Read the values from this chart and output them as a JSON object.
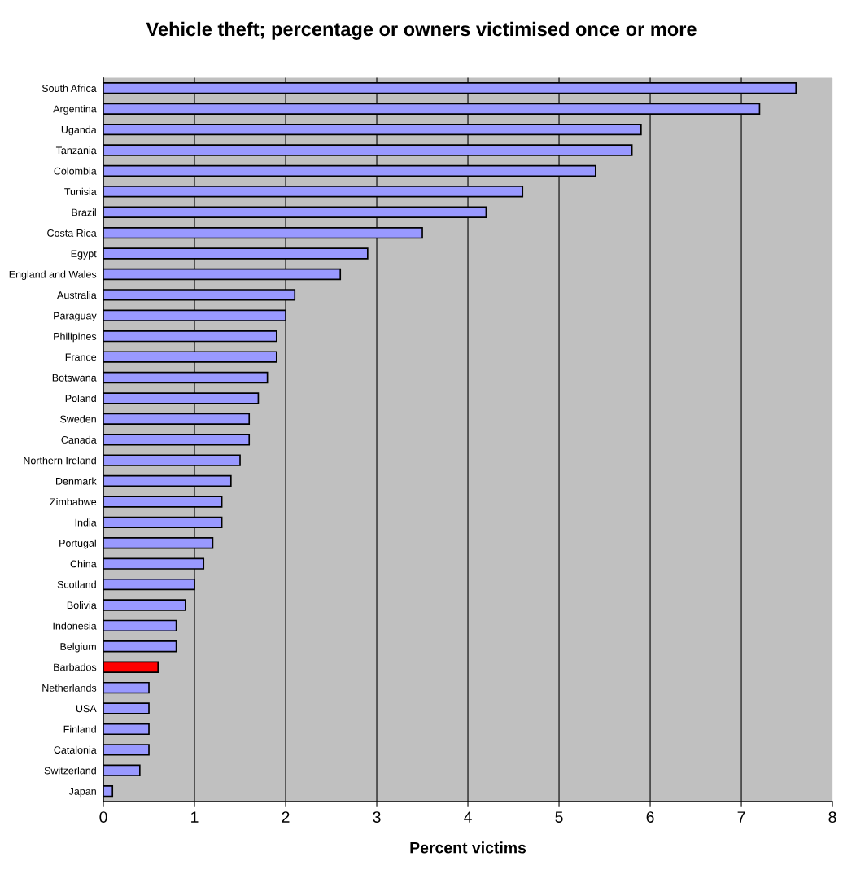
{
  "chart_data": {
    "type": "bar",
    "orientation": "horizontal",
    "title": "Vehicle theft; percentage or owners victimised once or more",
    "xlabel": "Percent victims",
    "categories": [
      "South Africa",
      "Argentina",
      "Uganda",
      "Tanzania",
      "Colombia",
      "Tunisia",
      "Brazil",
      "Costa Rica",
      "Egypt",
      "England and Wales",
      "Australia",
      "Paraguay",
      "Philipines",
      "France",
      "Botswana",
      "Poland",
      "Sweden",
      "Canada",
      "Northern Ireland",
      "Denmark",
      "Zimbabwe",
      "India",
      "Portugal",
      "China",
      "Scotland",
      "Bolivia",
      "Indonesia",
      "Belgium",
      "Barbados",
      "Netherlands",
      "USA",
      "Finland",
      "Catalonia",
      "Switzerland",
      "Japan"
    ],
    "values": [
      7.6,
      7.2,
      5.9,
      5.8,
      5.4,
      4.6,
      4.2,
      3.5,
      2.9,
      2.6,
      2.1,
      2.0,
      1.9,
      1.9,
      1.8,
      1.7,
      1.6,
      1.6,
      1.5,
      1.4,
      1.3,
      1.3,
      1.2,
      1.1,
      1.0,
      0.9,
      0.8,
      0.8,
      0.6,
      0.5,
      0.5,
      0.5,
      0.5,
      0.4,
      0.1
    ],
    "colors": [
      "#9999ff",
      "#9999ff",
      "#9999ff",
      "#9999ff",
      "#9999ff",
      "#9999ff",
      "#9999ff",
      "#9999ff",
      "#9999ff",
      "#9999ff",
      "#9999ff",
      "#9999ff",
      "#9999ff",
      "#9999ff",
      "#9999ff",
      "#9999ff",
      "#9999ff",
      "#9999ff",
      "#9999ff",
      "#9999ff",
      "#9999ff",
      "#9999ff",
      "#9999ff",
      "#9999ff",
      "#9999ff",
      "#9999ff",
      "#9999ff",
      "#9999ff",
      "#ff0000",
      "#9999ff",
      "#9999ff",
      "#9999ff",
      "#9999ff",
      "#9999ff",
      "#9999ff"
    ],
    "xlim": [
      0,
      8
    ],
    "xticks": [
      0,
      1,
      2,
      3,
      4,
      5,
      6,
      7,
      8
    ],
    "grid": "x"
  }
}
